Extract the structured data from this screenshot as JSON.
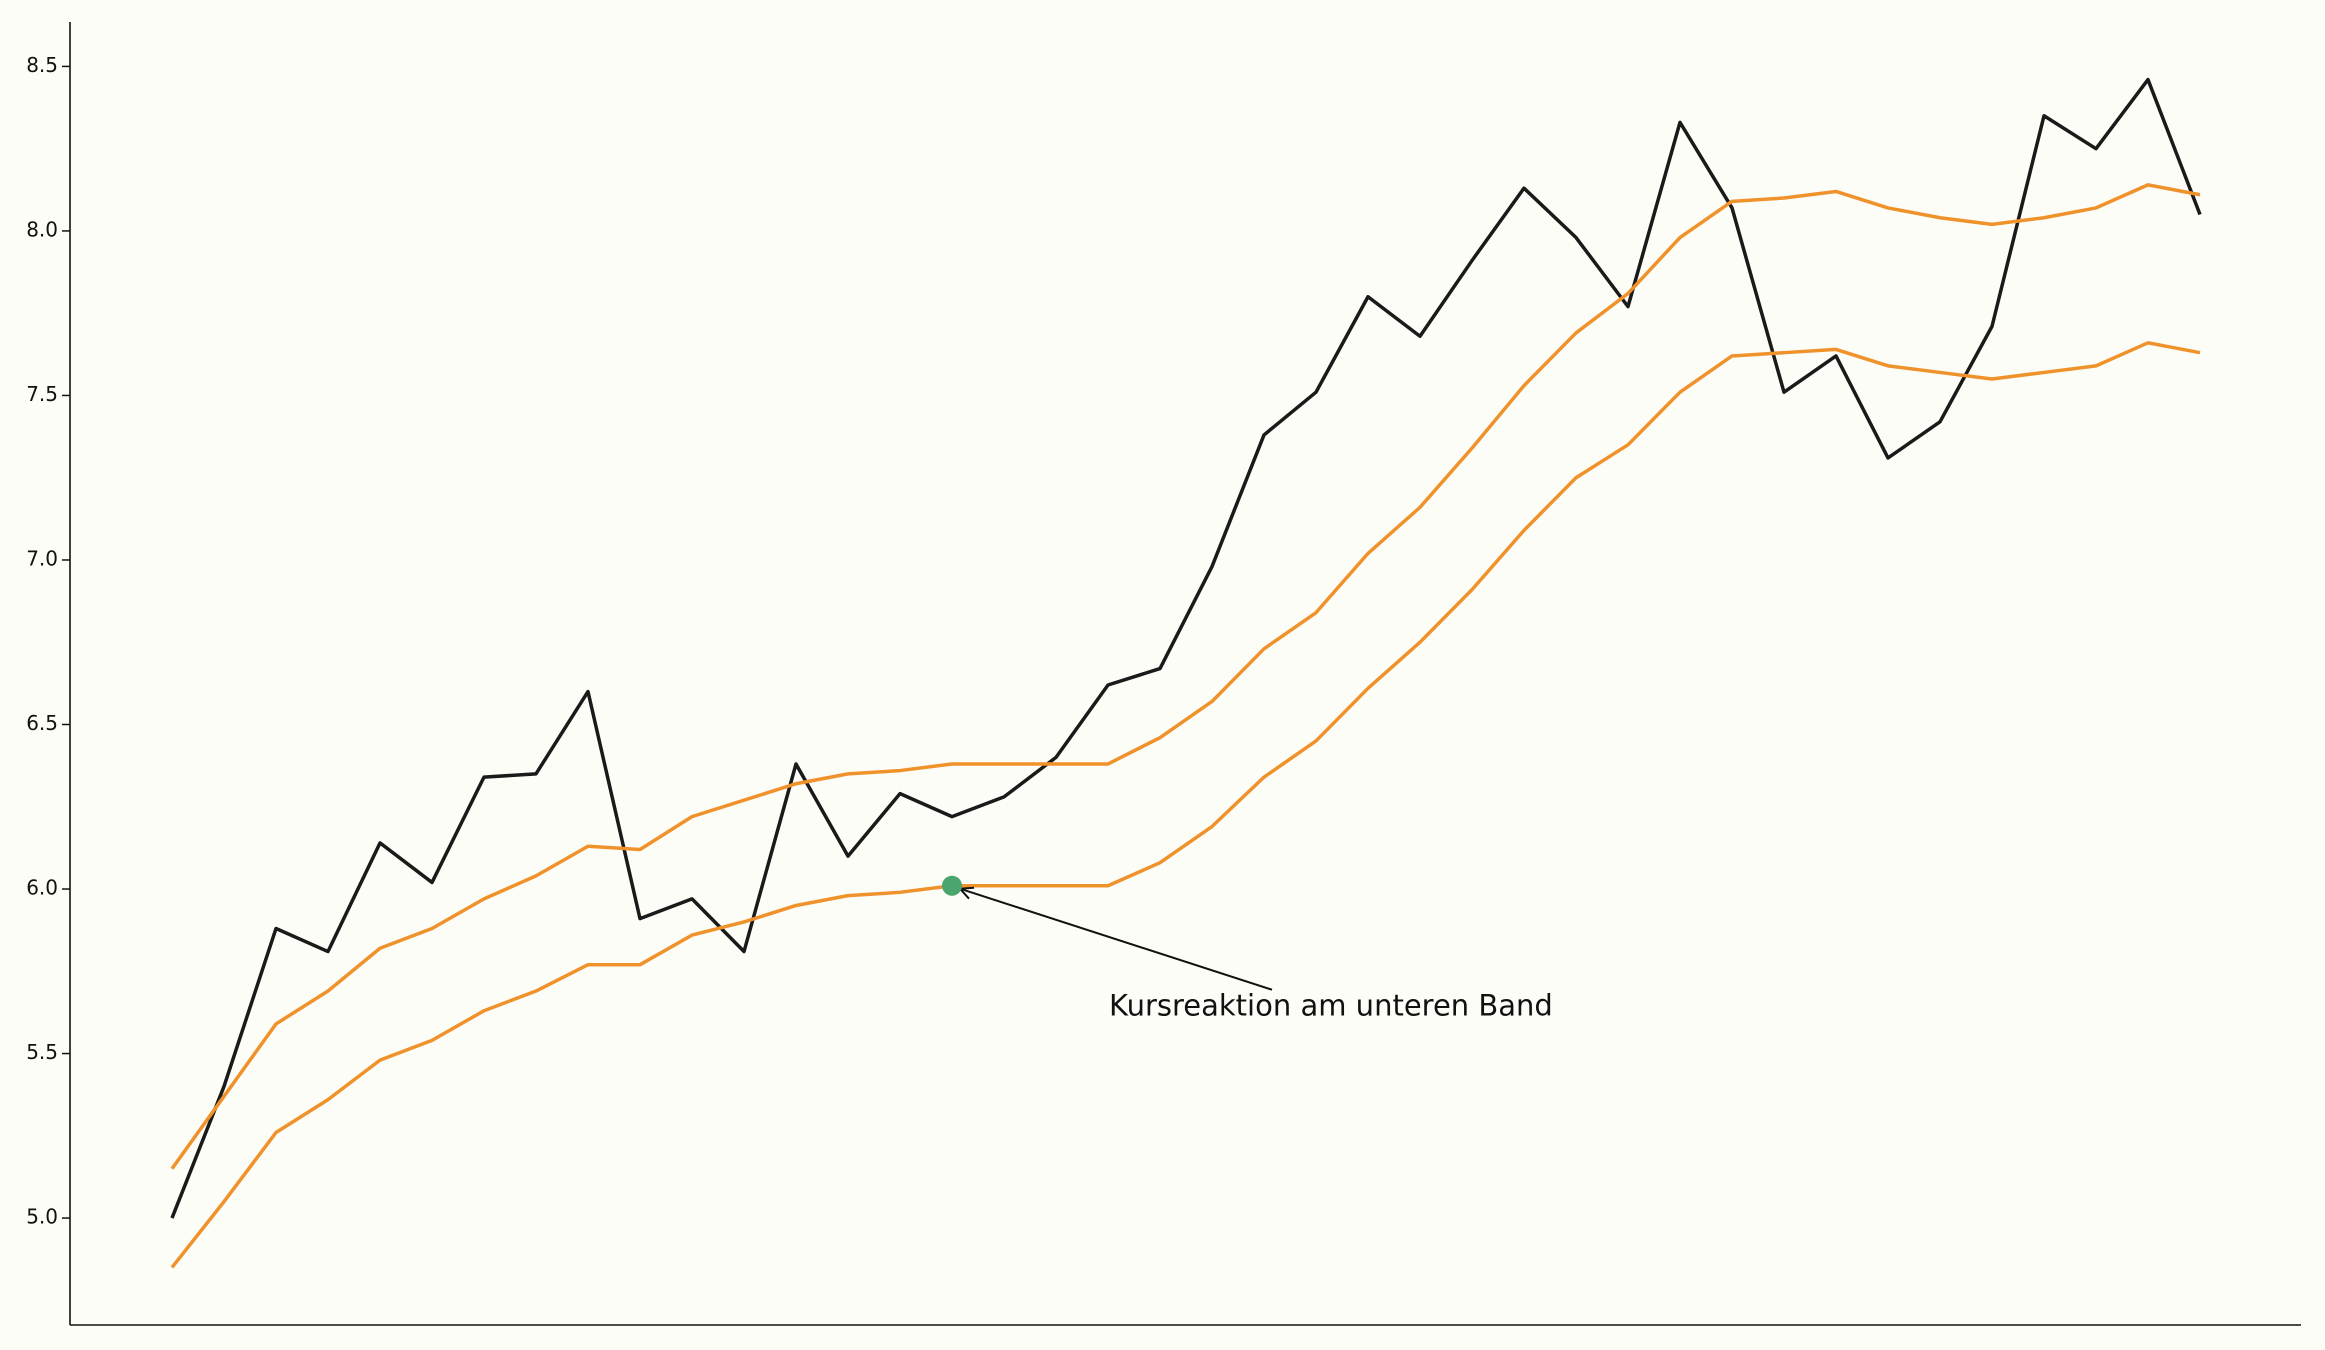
{
  "chart_data": {
    "type": "line",
    "categories": [
      null,
      null,
      null,
      null,
      null,
      null,
      null,
      null,
      null,
      null,
      null,
      null,
      null,
      null,
      null,
      null,
      null,
      null,
      null,
      null,
      null,
      null,
      null,
      null,
      null,
      null,
      null,
      null,
      null,
      null,
      null,
      null,
      null,
      null,
      null,
      null,
      null,
      null,
      null,
      null
    ],
    "series": [
      {
        "color": "#1a1a1a",
        "values": [
          5.0,
          5.4,
          5.88,
          5.81,
          6.14,
          6.02,
          6.34,
          6.35,
          6.6,
          5.91,
          5.97,
          5.81,
          6.38,
          6.1,
          6.29,
          6.22,
          6.28,
          6.4,
          6.62,
          6.67,
          6.98,
          7.38,
          7.51,
          7.8,
          7.68,
          7.91,
          8.13,
          7.98,
          7.77,
          8.33,
          8.07,
          7.51,
          7.62,
          7.31,
          7.42,
          7.71,
          8.35,
          8.25,
          8.46,
          8.05
        ]
      },
      {
        "color": "#f0922b",
        "values": [
          5.15,
          5.37,
          5.59,
          5.69,
          5.82,
          5.88,
          5.97,
          6.04,
          6.13,
          6.12,
          6.22,
          6.27,
          6.32,
          6.35,
          6.36,
          6.38,
          6.38,
          6.38,
          6.38,
          6.46,
          6.57,
          6.73,
          6.84,
          7.02,
          7.16,
          7.34,
          7.53,
          7.69,
          7.81,
          7.98,
          8.09,
          8.1,
          8.12,
          8.07,
          8.04,
          8.02,
          8.04,
          8.07,
          8.14,
          8.11
        ]
      },
      {
        "color": "#f0922b",
        "values": [
          4.85,
          5.05,
          5.26,
          5.36,
          5.48,
          5.54,
          5.63,
          5.69,
          5.77,
          5.77,
          5.86,
          5.9,
          5.95,
          5.98,
          5.99,
          6.01,
          6.01,
          6.01,
          6.01,
          6.08,
          6.19,
          6.34,
          6.45,
          6.61,
          6.75,
          6.91,
          7.09,
          7.25,
          7.35,
          7.51,
          7.62,
          7.63,
          7.64,
          7.59,
          7.57,
          7.55,
          7.57,
          7.59,
          7.66,
          7.63
        ]
      }
    ],
    "ylim": [
      4.675,
      8.635
    ],
    "yticks": [
      {
        "value": 5,
        "label": "5.0"
      },
      5.5,
      {
        "value": 6,
        "label": "6.0"
      },
      6.5,
      {
        "value": 7,
        "label": "7.0"
      },
      7.5,
      {
        "value": 8,
        "label": "8.0"
      },
      8.5
    ],
    "annotation": {
      "text": "Kursreaktion am unteren Band",
      "series": 2,
      "index": 15,
      "color": "#4aa66e"
    }
  }
}
